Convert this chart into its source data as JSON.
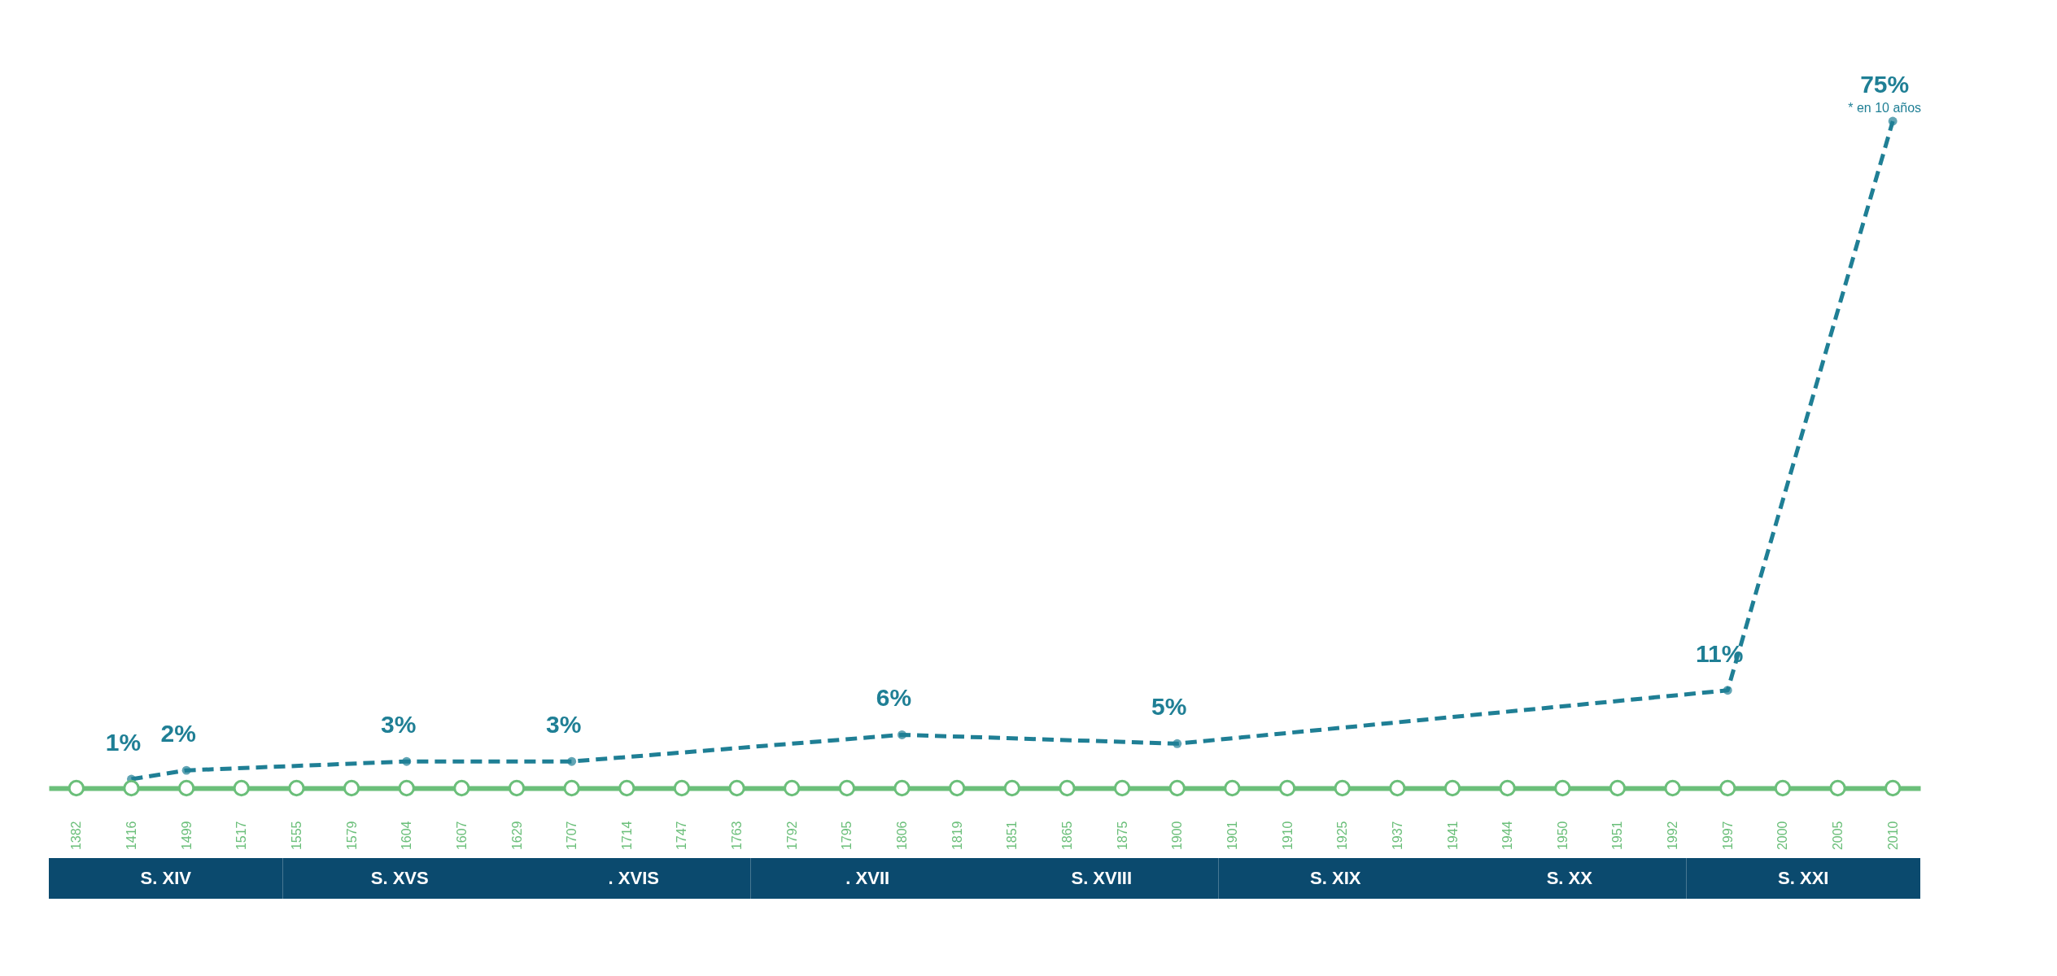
{
  "chart_data": {
    "type": "line",
    "categories": [
      "1382",
      "1416",
      "1499",
      "1517",
      "1555",
      "1579",
      "1604",
      "1607",
      "1629",
      "1707",
      "1714",
      "1747",
      "1763",
      "1792",
      "1795",
      "1806",
      "1819",
      "1851",
      "1865",
      "1875",
      "1900",
      "1901",
      "1910",
      "1925",
      "1937",
      "1941",
      "1944",
      "1950",
      "1951",
      "1992",
      "1997",
      "2000",
      "2005",
      "2010"
    ],
    "series": [
      {
        "color": "#1f7f95",
        "line_style": "dashed",
        "values": [
          null,
          1,
          2,
          null,
          null,
          null,
          3,
          null,
          null,
          3,
          null,
          null,
          null,
          null,
          null,
          6,
          null,
          null,
          null,
          null,
          5,
          null,
          null,
          null,
          null,
          null,
          null,
          null,
          null,
          null,
          11,
          null,
          null,
          75
        ],
        "value_labels": [
          null,
          "1%",
          "2%",
          null,
          null,
          null,
          "3%",
          null,
          null,
          "3%",
          null,
          null,
          null,
          null,
          null,
          "6%",
          null,
          null,
          null,
          null,
          "5%",
          null,
          null,
          null,
          null,
          null,
          null,
          null,
          null,
          null,
          "11%",
          null,
          null,
          "75%"
        ]
      },
      {
        "type": "scatter",
        "color": "#6bbf7a",
        "values": [
          0,
          0,
          0,
          0,
          0,
          0,
          0,
          0,
          0,
          0,
          0,
          0,
          0,
          0,
          0,
          0,
          0,
          0,
          0,
          0,
          0,
          0,
          0,
          0,
          0,
          0,
          0,
          0,
          0,
          0,
          0,
          0,
          0,
          0
        ]
      }
    ],
    "marker": "circle",
    "tick_labels": "x",
    "grid": false,
    "annotations": [
      {
        "text": "* en 10 años",
        "x": "2010",
        "y": 75
      },
      "S. XIV",
      "S. XVS",
      ". XVIS",
      ". XVII",
      "S. XVIII",
      "S. XIX",
      "S. XX",
      "S. XXI"
    ]
  }
}
